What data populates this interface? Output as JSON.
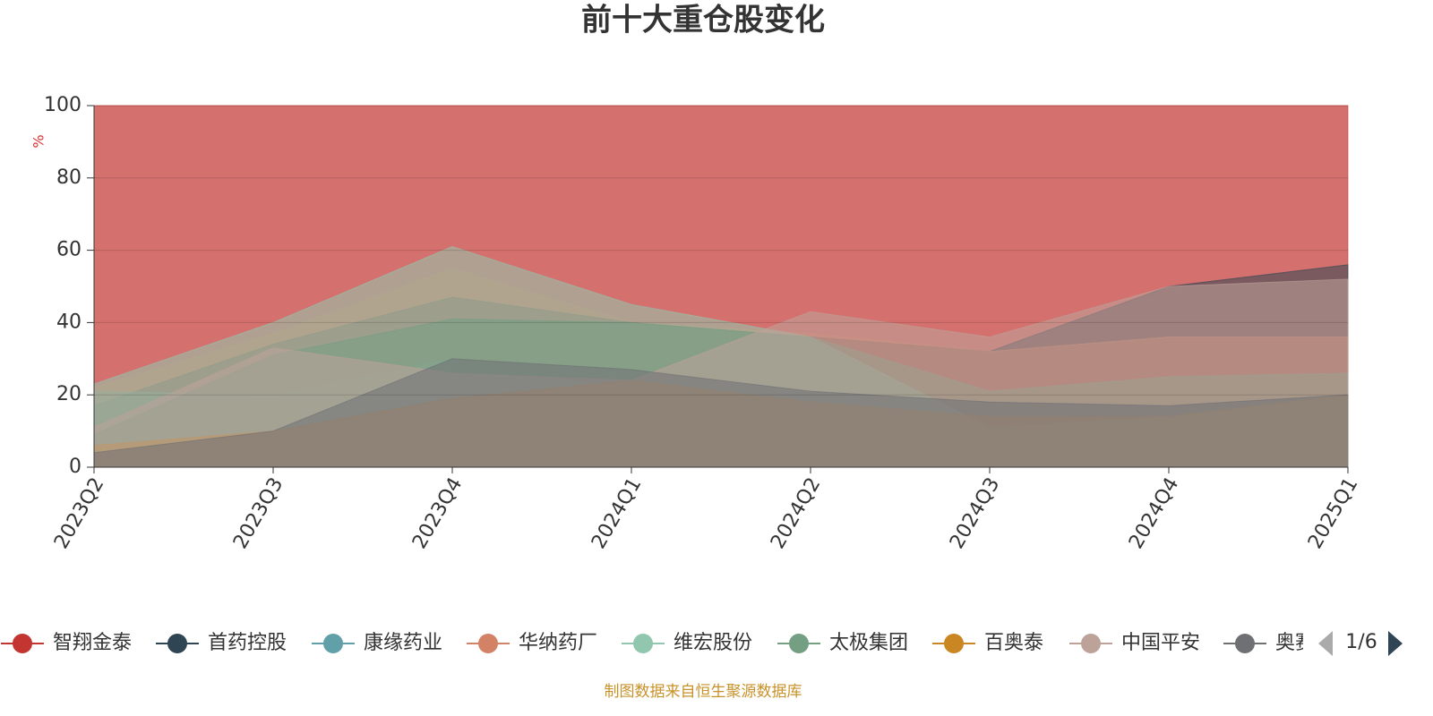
{
  "chart_data": {
    "type": "area",
    "title": "前十大重仓股变化",
    "y_axis_label": "%",
    "categories": [
      "2023Q2",
      "2023Q3",
      "2023Q4",
      "2024Q1",
      "2024Q2",
      "2024Q3",
      "2024Q4",
      "2025Q1"
    ],
    "series": [
      {
        "name": "智翔金泰",
        "color": "#c23531",
        "values": [
          100,
          100,
          100,
          100,
          100,
          100,
          100,
          100
        ]
      },
      {
        "name": "首药控股",
        "color": "#2f4554",
        "values": [
          17,
          34,
          47,
          40,
          36,
          32,
          50,
          56
        ]
      },
      {
        "name": "康缘药业",
        "color": "#61a0a8",
        "values": [
          21,
          20,
          30,
          21,
          14,
          8,
          14,
          17
        ]
      },
      {
        "name": "华纳药厂",
        "color": "#d48265",
        "values": [
          22,
          37,
          55,
          40,
          37,
          32,
          36,
          36
        ]
      },
      {
        "name": "维宏股份",
        "color": "#91c7ae",
        "values": [
          23,
          40,
          61,
          45,
          36,
          11,
          14,
          20
        ]
      },
      {
        "name": "太极集团",
        "color": "#749f83",
        "values": [
          9,
          31,
          41,
          40,
          36,
          21,
          25,
          26
        ]
      },
      {
        "name": "百奥泰",
        "color": "#ca8622",
        "values": [
          6,
          10,
          19,
          24,
          18,
          14,
          14,
          20
        ]
      },
      {
        "name": "中国平安",
        "color": "#bda29a",
        "values": [
          11,
          33,
          26,
          24,
          43,
          36,
          50,
          52
        ]
      },
      {
        "name": "奥赛康",
        "color": "#6e7074",
        "values": [
          4,
          10,
          30,
          27,
          21,
          18,
          17,
          20
        ]
      }
    ],
    "ylim": [
      0,
      100
    ],
    "yticks": [
      0,
      20,
      40,
      60,
      80,
      100
    ],
    "grid": true,
    "legend_position": "bottom",
    "legend_page": "1/6",
    "source": "制图数据来自恒生聚源数据库"
  }
}
